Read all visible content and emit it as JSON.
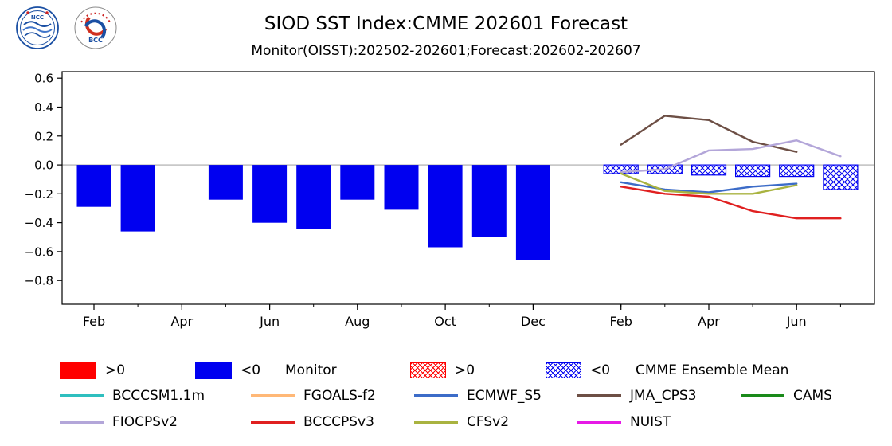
{
  "header": {
    "logos": [
      {
        "label": "NCC"
      },
      {
        "label": "BCC"
      }
    ]
  },
  "chart_data": {
    "type": "bar",
    "title": "SIOD SST Index:CMME 202601 Forecast",
    "subtitle": "Monitor(OISST):202502-202601;Forecast:202602-202607",
    "xlabel": "",
    "ylabel": "",
    "ylim": [
      -0.964,
      0.645
    ],
    "grid": false,
    "yticks": {
      "values": [
        0.6,
        0.4,
        0.2,
        0,
        -0.2,
        -0.4,
        -0.6,
        -0.8
      ],
      "labels": [
        "0.6",
        "0.4",
        "0.2",
        "0.0",
        "−0.2",
        "−0.4",
        "−0.6",
        "−0.8"
      ]
    },
    "months": [
      "Feb",
      "Mar",
      "Apr",
      "May",
      "Jun",
      "Jul",
      "Aug",
      "Sep",
      "Oct",
      "Nov",
      "Dec",
      "Jan",
      "Feb",
      "Mar",
      "Apr",
      "May",
      "Jun",
      "Jul"
    ],
    "xticks": {
      "month_indices": [
        0,
        2,
        4,
        6,
        8,
        10,
        12,
        14,
        16
      ],
      "labels": [
        "Feb",
        "Apr",
        "Jun",
        "Aug",
        "Oct",
        "Dec",
        "Feb",
        "Apr",
        "Jun"
      ]
    },
    "monitor_bars": {
      "label": "Monitor",
      "color_positive": "#ff0000",
      "color_negative": "#0000f0",
      "months": [
        "Feb",
        "Mar",
        "Apr",
        "May",
        "Jun",
        "Jul",
        "Aug",
        "Sep",
        "Oct",
        "Nov",
        "Dec",
        "Jan"
      ],
      "month_indices": [
        0,
        1,
        2,
        3,
        4,
        5,
        6,
        7,
        8,
        9,
        10,
        11
      ],
      "values": [
        -0.29,
        -0.46,
        0,
        -0.24,
        -0.4,
        -0.44,
        -0.24,
        -0.31,
        -0.57,
        -0.5,
        -0.66,
        0
      ]
    },
    "ensemble_bars": {
      "label": "CMME Ensemble Mean",
      "style": "crosshatch",
      "months": [
        "Feb",
        "Mar",
        "Apr",
        "May",
        "Jun",
        "Jul"
      ],
      "month_indices": [
        12,
        13,
        14,
        15,
        16,
        17
      ],
      "values": [
        -0.06,
        -0.06,
        -0.07,
        -0.08,
        -0.08,
        -0.17
      ]
    },
    "series": [
      {
        "name": "BCCCSM1.1m",
        "color": "#2fbfbf",
        "month_indices": [],
        "values": []
      },
      {
        "name": "FGOALS-f2",
        "color": "#ffb877",
        "month_indices": [],
        "values": []
      },
      {
        "name": "ECMWF_S5",
        "color": "#3c6cc8",
        "month_indices": [
          12,
          13,
          14,
          15,
          16
        ],
        "values": [
          -0.12,
          -0.17,
          -0.19,
          -0.15,
          -0.13
        ]
      },
      {
        "name": "JMA_CPS3",
        "color": "#6d4f45",
        "month_indices": [
          12,
          13,
          14,
          15,
          16
        ],
        "values": [
          0.14,
          0.34,
          0.31,
          0.16,
          0.09
        ]
      },
      {
        "name": "CAMS",
        "color": "#1a8a1a",
        "month_indices": [],
        "values": []
      },
      {
        "name": "FIOCPSv2",
        "color": "#b3a6d9",
        "month_indices": [
          12,
          13,
          14,
          15,
          16,
          17
        ],
        "values": [
          -0.05,
          -0.03,
          0.1,
          0.11,
          0.17,
          0.06
        ]
      },
      {
        "name": "BCCCPSv3",
        "color": "#e02020",
        "month_indices": [
          12,
          13,
          14,
          15,
          16,
          17
        ],
        "values": [
          -0.15,
          -0.2,
          -0.22,
          -0.32,
          -0.37,
          -0.37
        ]
      },
      {
        "name": "CFSv2",
        "color": "#a9b340",
        "month_indices": [
          12,
          13,
          14,
          15,
          16
        ],
        "values": [
          -0.06,
          -0.18,
          -0.2,
          -0.2,
          -0.14
        ]
      },
      {
        "name": "NUIST",
        "color": "#e619e6",
        "month_indices": [],
        "values": []
      }
    ]
  },
  "legend": {
    "row1": [
      {
        "id": "monitor-positive",
        "kind": "box",
        "color": "#ff0000",
        "label": ">0"
      },
      {
        "id": "monitor-negative",
        "kind": "box",
        "color": "#0000f0",
        "label": "<0"
      },
      {
        "id": "monitor-title",
        "kind": "label",
        "label": "Monitor"
      },
      {
        "id": "cmme-positive",
        "kind": "hatch",
        "color": "#ff0000",
        "label": ">0"
      },
      {
        "id": "cmme-negative",
        "kind": "hatch",
        "color": "#0000f0",
        "label": "<0"
      },
      {
        "id": "cmme-title",
        "kind": "label",
        "label": "CMME Ensemble Mean"
      }
    ],
    "model_rows": [
      [
        "BCCCSM1.1m",
        "FGOALS-f2",
        "ECMWF_S5",
        "JMA_CPS3",
        "CAMS"
      ],
      [
        "FIOCPSv2",
        "BCCCPSv3",
        "CFSv2",
        "NUIST"
      ]
    ]
  }
}
